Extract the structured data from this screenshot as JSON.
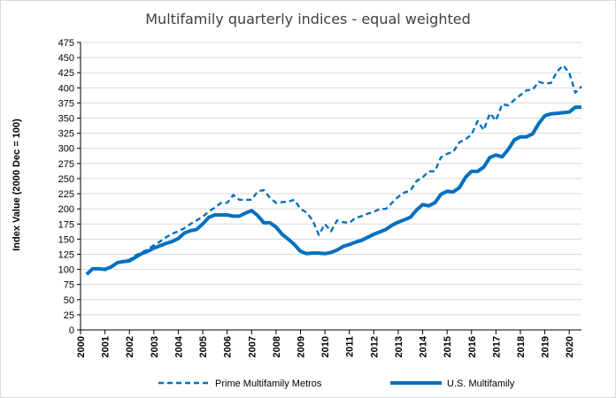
{
  "chart_data": {
    "type": "line",
    "title": "Multifamily quarterly indices - equal weighted",
    "xlabel": "",
    "ylabel": "Index Value (2000 Dec = 100)",
    "ylim": [
      0,
      475
    ],
    "yticks": [
      0,
      25,
      50,
      75,
      100,
      125,
      150,
      175,
      200,
      225,
      250,
      275,
      300,
      325,
      350,
      375,
      400,
      425,
      450,
      475
    ],
    "xticks": [
      "2000",
      "2001",
      "2002",
      "2003",
      "2004",
      "2005",
      "2006",
      "2007",
      "2008",
      "2009",
      "2010",
      "2011",
      "2012",
      "2013",
      "2014",
      "2015",
      "2016",
      "2017",
      "2018",
      "2019",
      "2020"
    ],
    "xlim": [
      2000,
      2020.5
    ],
    "grid": "horizontal",
    "legend_position": "bottom",
    "series": [
      {
        "name": "Prime Multifamily Metros",
        "color": "#0070c0",
        "style": "dashed",
        "x": [
          2000.25,
          2000.5,
          2000.75,
          2001.0,
          2001.25,
          2001.5,
          2001.75,
          2002.0,
          2002.25,
          2002.5,
          2002.75,
          2003.0,
          2003.25,
          2003.5,
          2003.75,
          2004.0,
          2004.25,
          2004.5,
          2004.75,
          2005.0,
          2005.25,
          2005.5,
          2005.75,
          2006.0,
          2006.25,
          2006.5,
          2006.75,
          2007.0,
          2007.25,
          2007.5,
          2007.75,
          2008.0,
          2008.25,
          2008.5,
          2008.75,
          2009.0,
          2009.25,
          2009.5,
          2009.75,
          2010.0,
          2010.25,
          2010.5,
          2010.75,
          2011.0,
          2011.25,
          2011.5,
          2011.75,
          2012.0,
          2012.25,
          2012.5,
          2012.75,
          2013.0,
          2013.25,
          2013.5,
          2013.75,
          2014.0,
          2014.25,
          2014.5,
          2014.75,
          2015.0,
          2015.25,
          2015.5,
          2015.75,
          2016.0,
          2016.25,
          2016.5,
          2016.75,
          2017.0,
          2017.25,
          2017.5,
          2017.75,
          2018.0,
          2018.25,
          2018.5,
          2018.75,
          2019.0,
          2019.25,
          2019.5,
          2019.75,
          2020.0,
          2020.25,
          2020.5
        ],
        "values": [
          93,
          101,
          101,
          100,
          105,
          112,
          114,
          116,
          123,
          128,
          133,
          140,
          146,
          153,
          159,
          163,
          168,
          175,
          181,
          187,
          196,
          202,
          210,
          210,
          223,
          215,
          215,
          215,
          229,
          231,
          218,
          210,
          211,
          212,
          215,
          200,
          194,
          181,
          157,
          175,
          163,
          181,
          178,
          177,
          185,
          188,
          192,
          195,
          200,
          200,
          210,
          220,
          227,
          230,
          246,
          252,
          262,
          262,
          285,
          291,
          294,
          310,
          315,
          323,
          345,
          330,
          358,
          346,
          373,
          371,
          380,
          388,
          396,
          397,
          410,
          407,
          408,
          427,
          437,
          425,
          392,
          402
        ]
      },
      {
        "name": "U.S. Multifamily",
        "color": "#0070c0",
        "style": "solid",
        "x": [
          2000.25,
          2000.5,
          2000.75,
          2001.0,
          2001.25,
          2001.5,
          2001.75,
          2002.0,
          2002.25,
          2002.5,
          2002.75,
          2003.0,
          2003.25,
          2003.5,
          2003.75,
          2004.0,
          2004.25,
          2004.5,
          2004.75,
          2005.0,
          2005.25,
          2005.5,
          2005.75,
          2006.0,
          2006.25,
          2006.5,
          2006.75,
          2007.0,
          2007.25,
          2007.5,
          2007.75,
          2008.0,
          2008.25,
          2008.5,
          2008.75,
          2009.0,
          2009.25,
          2009.5,
          2009.75,
          2010.0,
          2010.25,
          2010.5,
          2010.75,
          2011.0,
          2011.25,
          2011.5,
          2011.75,
          2012.0,
          2012.25,
          2012.5,
          2012.75,
          2013.0,
          2013.25,
          2013.5,
          2013.75,
          2014.0,
          2014.25,
          2014.5,
          2014.75,
          2015.0,
          2015.25,
          2015.5,
          2015.75,
          2016.0,
          2016.25,
          2016.5,
          2016.75,
          2017.0,
          2017.25,
          2017.5,
          2017.75,
          2018.0,
          2018.25,
          2018.5,
          2018.75,
          2019.0,
          2019.25,
          2019.5,
          2019.75,
          2020.0,
          2020.25,
          2020.5
        ],
        "values": [
          92,
          101,
          101,
          100,
          104,
          111,
          113,
          114,
          120,
          126,
          130,
          135,
          139,
          143,
          146,
          151,
          160,
          164,
          166,
          175,
          186,
          190,
          190,
          190,
          188,
          188,
          193,
          197,
          189,
          177,
          177,
          170,
          158,
          150,
          141,
          130,
          126,
          127,
          127,
          126,
          128,
          132,
          138,
          141,
          145,
          148,
          153,
          158,
          162,
          166,
          173,
          178,
          182,
          186,
          198,
          207,
          205,
          210,
          224,
          229,
          228,
          235,
          252,
          262,
          262,
          269,
          285,
          289,
          286,
          298,
          314,
          319,
          319,
          324,
          341,
          354,
          357,
          358,
          359,
          360,
          368,
          368
        ]
      }
    ]
  }
}
